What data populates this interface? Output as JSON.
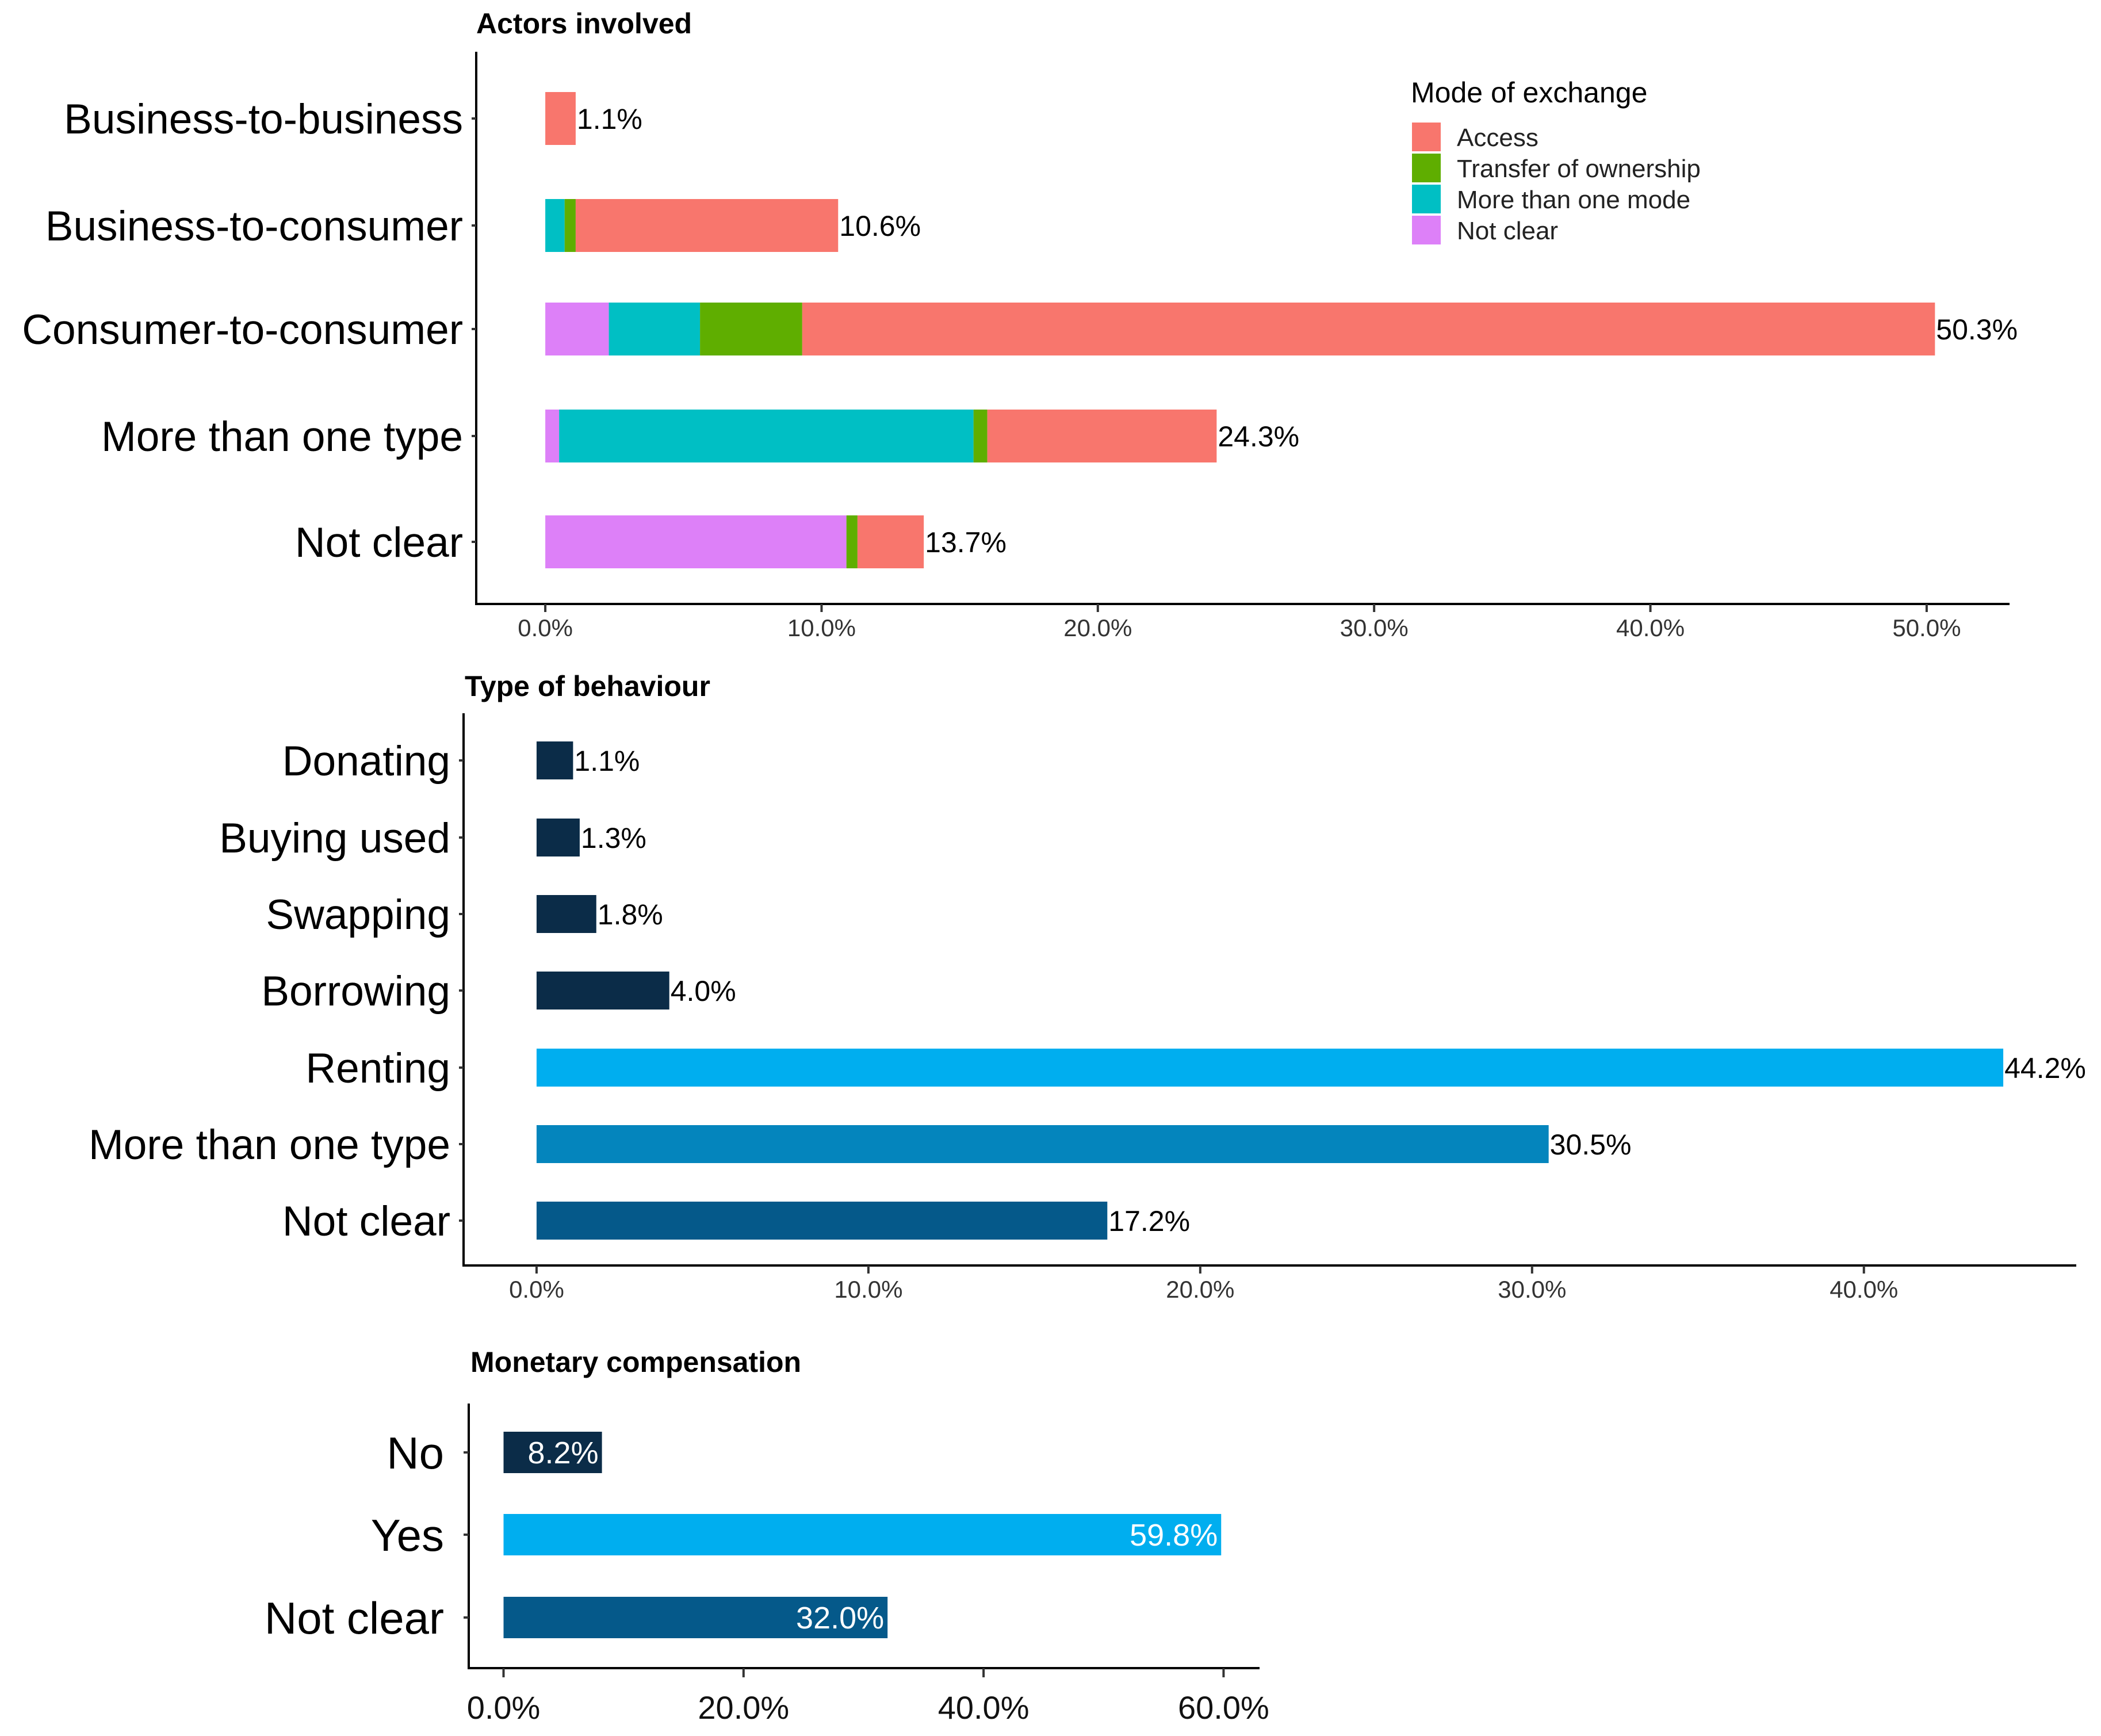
{
  "chart_data": [
    {
      "type": "bar",
      "orientation": "horizontal",
      "stacked": true,
      "title": "Actors involved",
      "categories": [
        "Business-to-business",
        "Business-to-consumer",
        "Consumer-to-consumer",
        "More than one type",
        "Not clear"
      ],
      "series": [
        {
          "name": "Not clear",
          "color": "#DD80F8",
          "values": [
            0,
            0,
            2.3,
            0.5,
            10.9
          ]
        },
        {
          "name": "More than one mode",
          "color": "#00BFC4",
          "values": [
            0,
            0.7,
            3.3,
            15.0,
            0
          ]
        },
        {
          "name": "Transfer of ownership",
          "color": "#5FAE00",
          "values": [
            0,
            0.4,
            3.7,
            0.5,
            0.4
          ]
        },
        {
          "name": "Access",
          "color": "#F8766D",
          "values": [
            1.1,
            9.5,
            41.0,
            8.3,
            2.4
          ]
        }
      ],
      "totals": [
        1.1,
        10.6,
        50.3,
        24.3,
        13.7
      ],
      "value_labels": [
        "1.1%",
        "10.6%",
        "50.3%",
        "24.3%",
        "13.7%"
      ],
      "xlim": [
        -2.5,
        53.0
      ],
      "ticks": [
        0,
        10,
        20,
        30,
        40,
        50
      ],
      "tick_labels": [
        "0.0%",
        "10.0%",
        "20.0%",
        "30.0%",
        "40.0%",
        "50.0%"
      ],
      "legend": {
        "title": "Mode of exchange",
        "position": "top-right",
        "items": [
          {
            "label": "Access",
            "color": "#F8766D"
          },
          {
            "label": "Transfer of ownership",
            "color": "#5FAE00"
          },
          {
            "label": "More than one mode",
            "color": "#00BFC4"
          },
          {
            "label": "Not clear",
            "color": "#DD80F8"
          }
        ]
      },
      "xlabel": "",
      "ylabel": ""
    },
    {
      "type": "bar",
      "orientation": "horizontal",
      "title": "Type of behaviour",
      "categories": [
        "Donating",
        "Buying used",
        "Swapping",
        "Borrowing",
        "Renting",
        "More than one type",
        "Not clear"
      ],
      "values": [
        1.1,
        1.3,
        1.8,
        4.0,
        44.2,
        30.5,
        17.2
      ],
      "value_labels": [
        "1.1%",
        "1.3%",
        "1.8%",
        "4.0%",
        "44.2%",
        "30.5%",
        "17.2%"
      ],
      "colors": [
        "#0B2C48",
        "#0B2C48",
        "#0B2C48",
        "#0B2C48",
        "#00AEEF",
        "#0485BD",
        "#05598A"
      ],
      "xlim": [
        -2.2,
        46.4
      ],
      "ticks": [
        0,
        10,
        20,
        30,
        40
      ],
      "tick_labels": [
        "0.0%",
        "10.0%",
        "20.0%",
        "30.0%",
        "40.0%"
      ],
      "xlabel": "",
      "ylabel": ""
    },
    {
      "type": "bar",
      "orientation": "horizontal",
      "title": "Monetary compensation",
      "categories": [
        "No",
        "Yes",
        "Not clear"
      ],
      "values": [
        8.2,
        59.8,
        32.0
      ],
      "value_labels": [
        "8.2%",
        "59.8%",
        "32.0%"
      ],
      "colors": [
        "#0B2C48",
        "#00AEEF",
        "#05598A"
      ],
      "label_position": "inside-end",
      "xlim": [
        -2.9,
        63.0
      ],
      "ticks": [
        0,
        20,
        40,
        60
      ],
      "tick_labels": [
        "0.0%",
        "20.0%",
        "40.0%",
        "60.0%"
      ],
      "xlabel": "",
      "ylabel": ""
    }
  ]
}
